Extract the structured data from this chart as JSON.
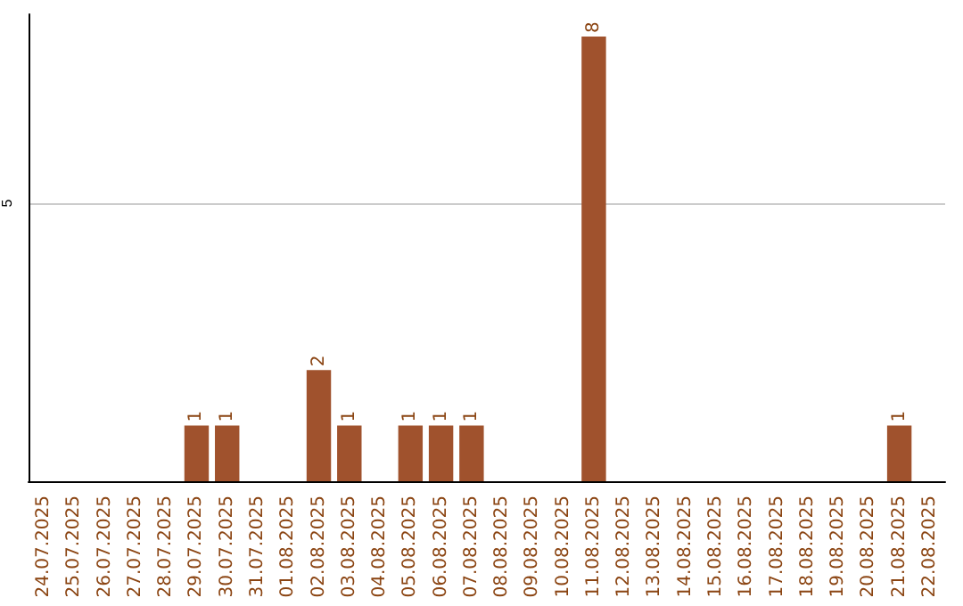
{
  "chart_data": {
    "type": "bar",
    "categories": [
      "24.07.2025",
      "25.07.2025",
      "26.07.2025",
      "27.07.2025",
      "28.07.2025",
      "29.07.2025",
      "30.07.2025",
      "31.07.2025",
      "01.08.2025",
      "02.08.2025",
      "03.08.2025",
      "04.08.2025",
      "05.08.2025",
      "06.08.2025",
      "07.08.2025",
      "08.08.2025",
      "09.08.2025",
      "10.08.2025",
      "11.08.2025",
      "12.08.2025",
      "13.08.2025",
      "14.08.2025",
      "15.08.2025",
      "16.08.2025",
      "17.08.2025",
      "18.08.2025",
      "19.08.2025",
      "20.08.2025",
      "21.08.2025",
      "22.08.2025"
    ],
    "values": [
      0,
      0,
      0,
      0,
      0,
      1,
      1,
      0,
      0,
      2,
      1,
      0,
      1,
      1,
      1,
      0,
      0,
      0,
      8,
      0,
      0,
      0,
      0,
      0,
      0,
      0,
      0,
      0,
      1,
      0
    ],
    "value_labels": [
      null,
      null,
      null,
      null,
      null,
      "1",
      "1",
      null,
      null,
      "2",
      "1",
      null,
      "1",
      "1",
      "1",
      null,
      null,
      null,
      "8",
      null,
      null,
      null,
      null,
      null,
      null,
      null,
      null,
      null,
      "1",
      null
    ],
    "color": "#a0522d",
    "ylim": [
      0,
      8.4
    ],
    "yticks": [
      5
    ],
    "grid": "y"
  }
}
